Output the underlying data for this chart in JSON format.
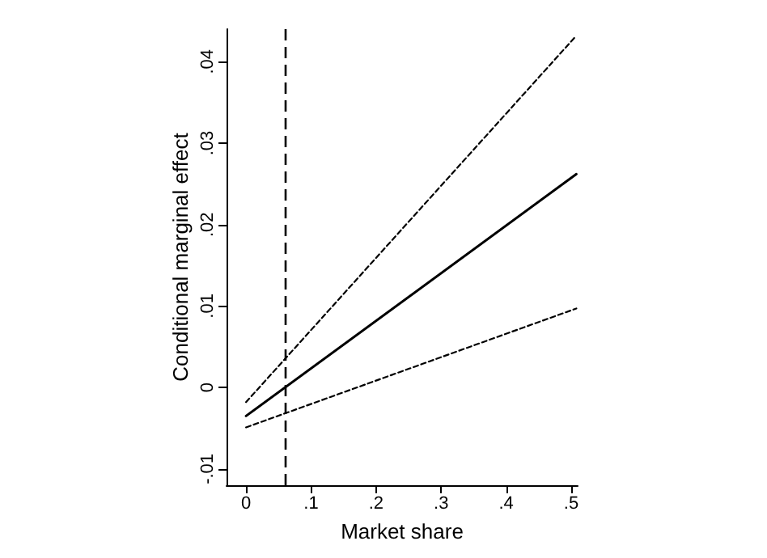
{
  "chart_data": {
    "type": "line",
    "xlabel": "Market share",
    "ylabel": "Conditional marginal effect",
    "series": [
      {
        "values": [
          -0.0035,
          0.0262
        ],
        "color": "#000000",
        "line_style": "solid"
      },
      {
        "values": [
          -0.0018,
          0.0432
        ],
        "color": "#000000",
        "line_style": "dotted"
      },
      {
        "values": [
          -0.0049,
          0.0097
        ],
        "color": "#000000",
        "line_style": "dotted"
      }
    ],
    "x": [
      0,
      0.508
    ],
    "xlim": [
      -0.03,
      0.51
    ],
    "ylim": [
      -0.012,
      0.044
    ],
    "xticks": [
      0,
      {
        "value": 0.1,
        "label": ".1"
      },
      {
        "value": 0.2,
        "label": ".2"
      },
      {
        "value": 0.3,
        "label": ".3"
      },
      {
        "value": 0.4,
        "label": ".4"
      },
      {
        "value": 0.5,
        "label": ".5"
      }
    ],
    "yticks": [
      {
        "value": -0.01,
        "label": "-.01"
      },
      0,
      {
        "value": 0.01,
        "label": ".01"
      },
      {
        "value": 0.02,
        "label": ".02"
      },
      {
        "value": 0.03,
        "label": ".03"
      },
      {
        "value": 0.04,
        "label": ".04"
      }
    ],
    "ref_lines": [
      {
        "axis": "x",
        "value": 0.062,
        "color": "#000000",
        "line_style": "dashed"
      }
    ],
    "grid": false,
    "marker": "none"
  }
}
